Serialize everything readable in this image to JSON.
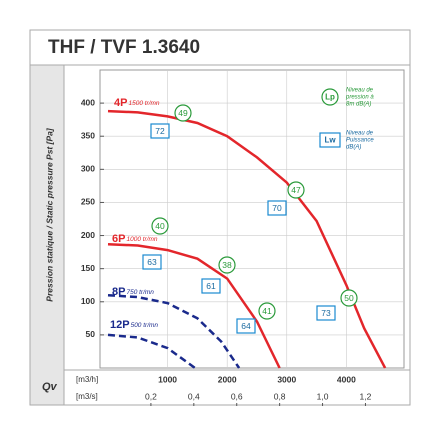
{
  "chart_data": {
    "type": "line",
    "title": "THF / TVF 1.3640",
    "ylabel": "Pression statique / Static pressure Pst [Pa]",
    "xlabel": "Qv",
    "x_unit": "[m3/h]",
    "x2_unit": "[m3/s]",
    "xlim": [
      0,
      4900
    ],
    "xticks": [
      1000,
      2000,
      3000,
      4000
    ],
    "x2lim": [
      0,
      1.361
    ],
    "x2ticks": [
      {
        "value": 0.2,
        "label": "0,2"
      },
      {
        "value": 0.4,
        "label": "0,4"
      },
      {
        "value": 0.6,
        "label": "0,6"
      },
      {
        "value": 0.8,
        "label": "0,8"
      },
      {
        "value": 1.0,
        "label": "1,0"
      },
      {
        "value": 1.2,
        "label": "1,2"
      }
    ],
    "ylim": [
      0,
      450
    ],
    "yticks": [
      50,
      100,
      150,
      200,
      250,
      300,
      350,
      400
    ],
    "grid": true,
    "series": [
      {
        "name": "4P",
        "speed": "1500 tr/mn",
        "color": "#e3262b",
        "dashed": false,
        "x": [
          0,
          500,
          1000,
          1500,
          2000,
          2500,
          3000,
          3500,
          4000,
          4300,
          4650
        ],
        "values": [
          388,
          386,
          380,
          370,
          350,
          318,
          280,
          222,
          125,
          60,
          0
        ],
        "lp": [
          "49",
          "47",
          "50"
        ],
        "lw": [
          "72",
          "70",
          "73"
        ]
      },
      {
        "name": "6P",
        "speed": "1000 tr/mn",
        "color": "#e3262b",
        "dashed": false,
        "x": [
          0,
          500,
          1000,
          1500,
          2000,
          2500,
          2880
        ],
        "values": [
          187,
          185,
          178,
          165,
          135,
          70,
          0
        ],
        "lp": [
          "40",
          "38",
          "41"
        ],
        "lw": [
          "63",
          "61",
          "64"
        ]
      },
      {
        "name": "8P",
        "speed": "750 tr/mn",
        "color": "#1a2a8c",
        "dashed": true,
        "x": [
          0,
          500,
          1000,
          1500,
          1900,
          2200
        ],
        "values": [
          110,
          107,
          98,
          75,
          40,
          0
        ]
      },
      {
        "name": "12P",
        "speed": "500 tr/mn",
        "color": "#1a2a8c",
        "dashed": true,
        "x": [
          0,
          500,
          1000,
          1460
        ],
        "values": [
          50,
          46,
          30,
          0
        ]
      }
    ],
    "legend": [
      {
        "symbol": "Lp",
        "text": [
          "Niveau de",
          "pression à",
          "8m dB(A)"
        ]
      },
      {
        "symbol": "Lw",
        "text": [
          "Niveau de",
          "Puissance",
          "dB(A)"
        ]
      }
    ]
  }
}
